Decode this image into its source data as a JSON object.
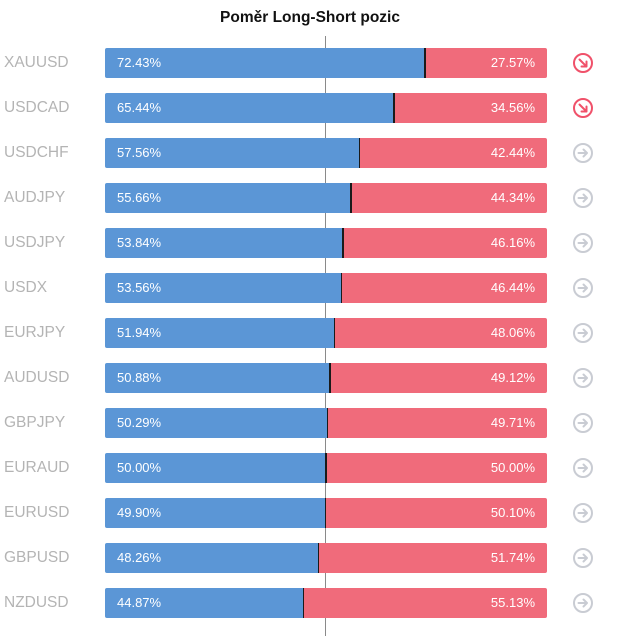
{
  "chart_data": {
    "type": "bar",
    "title": "Poměr Long-Short pozic",
    "categories": [
      "XAUUSD",
      "USDCAD",
      "USDCHF",
      "AUDJPY",
      "USDJPY",
      "USDX",
      "EURJPY",
      "AUDUSD",
      "GBPJPY",
      "EURAUD",
      "EURUSD",
      "GBPUSD",
      "NZDUSD"
    ],
    "series": [
      {
        "values": [
          72.43,
          65.44,
          57.56,
          55.66,
          53.84,
          53.56,
          51.94,
          50.88,
          50.29,
          50.0,
          49.9,
          48.26,
          44.87
        ]
      },
      {
        "values": [
          27.57,
          34.56,
          42.44,
          44.34,
          46.16,
          46.44,
          48.06,
          49.12,
          49.71,
          50.0,
          50.1,
          51.74,
          55.13
        ]
      }
    ],
    "labels_long": [
      "72.43%",
      "65.44%",
      "57.56%",
      "55.66%",
      "53.84%",
      "53.56%",
      "51.94%",
      "50.88%",
      "50.29%",
      "50.00%",
      "49.90%",
      "48.26%",
      "44.87%"
    ],
    "labels_short": [
      "27.57%",
      "34.56%",
      "42.44%",
      "44.34%",
      "46.16%",
      "46.44%",
      "48.06%",
      "49.12%",
      "49.71%",
      "50.00%",
      "50.10%",
      "51.74%",
      "55.13%"
    ],
    "ylim": [
      0,
      100
    ],
    "stacked": true,
    "orientation": "horizontal",
    "colors": {
      "long": "#5b96d6",
      "short": "#f06b7b"
    },
    "icons": [
      "arrow-down-right-icon",
      "arrow-down-right-icon",
      "arrow-right-icon",
      "arrow-right-icon",
      "arrow-right-icon",
      "arrow-right-icon",
      "arrow-right-icon",
      "arrow-right-icon",
      "arrow-right-icon",
      "arrow-right-icon",
      "arrow-right-icon",
      "arrow-right-icon",
      "arrow-right-icon"
    ],
    "icon_colors": {
      "arrow-down-right-icon": "#f0516a",
      "arrow-right-icon": "#c9ccd3"
    }
  }
}
